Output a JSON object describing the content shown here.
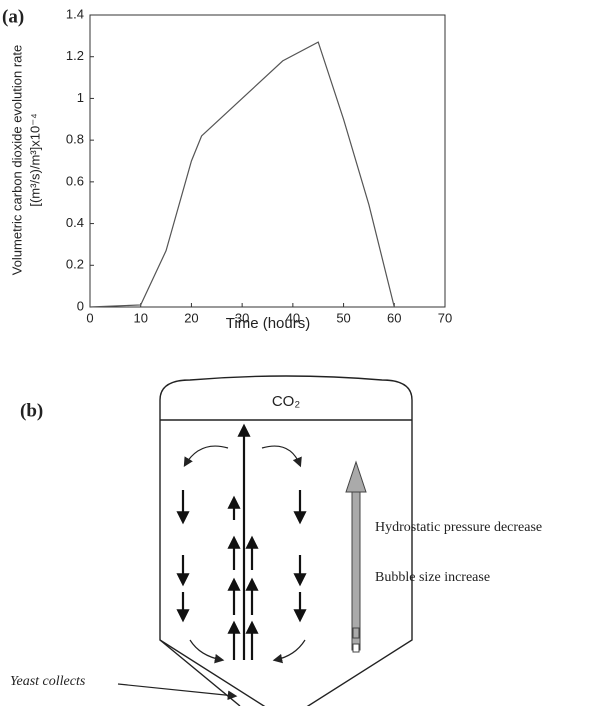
{
  "chart_data": {
    "type": "line",
    "panel_label": "(a)",
    "x_label": "Time (hours)",
    "y_label": [
      "Volumetric carbon dioxide evolution rate",
      "[(m³/s)/m³]x10⁻⁴"
    ],
    "x": [
      0,
      10,
      15,
      20,
      22,
      30,
      38,
      45,
      50,
      55,
      60
    ],
    "series": [
      {
        "color": "#555555",
        "values": [
          0,
          0.01,
          0.27,
          0.7,
          0.82,
          1.0,
          1.18,
          1.27,
          0.9,
          0.49,
          0
        ]
      }
    ],
    "xlim": [
      0,
      70
    ],
    "xticks": [
      0,
      10,
      20,
      30,
      40,
      50,
      60,
      70
    ],
    "ylim": [
      0,
      1.4
    ],
    "yticks": [
      0,
      0.2,
      0.4,
      0.6,
      0.8,
      1,
      1.2,
      1.4
    ],
    "grid": false
  },
  "diagram": {
    "panel_label": "(b)",
    "gas_label": "CO₂",
    "pressure_label": "Hydrostatic pressure decrease",
    "bubble_label": "Bubble size increase",
    "yeast_label": "Yeast collects"
  }
}
